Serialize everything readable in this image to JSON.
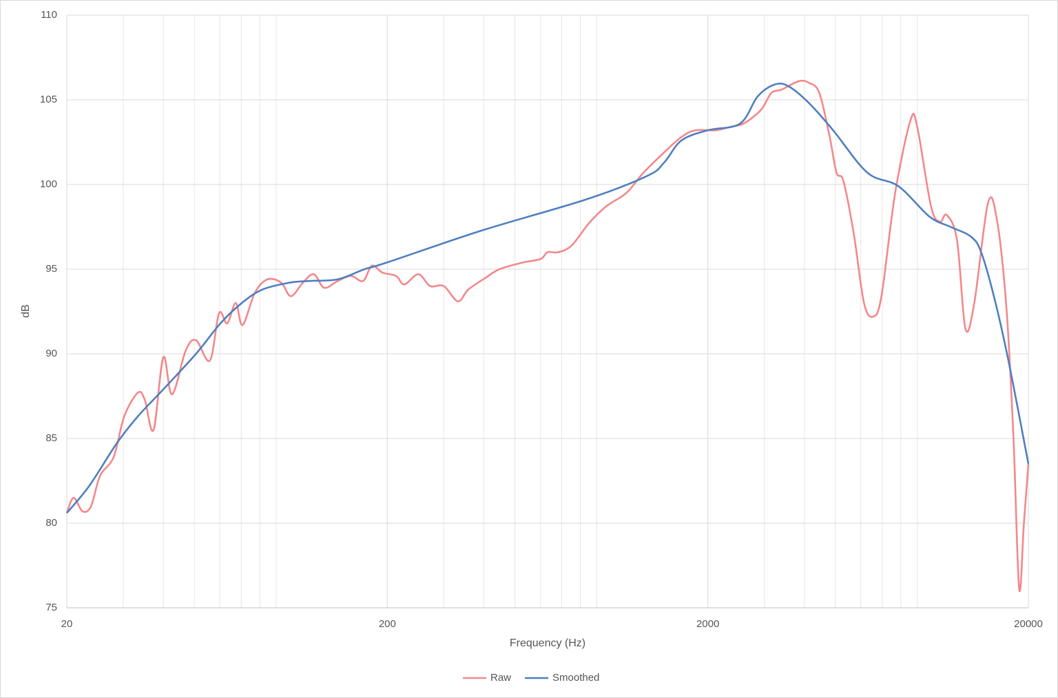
{
  "chart_data": {
    "type": "line",
    "x_label": "Frequency (Hz)",
    "y_label": "dB",
    "xlog": true,
    "grid": true,
    "legend": "bottom",
    "xlim": [
      20,
      20000
    ],
    "xticks": [
      20,
      200,
      2000,
      20000
    ],
    "xminorticks": [
      30,
      40,
      50,
      60,
      70,
      80,
      90,
      300,
      400,
      500,
      600,
      700,
      800,
      900,
      3000,
      4000,
      5000,
      6000,
      7000,
      8000,
      9000
    ],
    "ylim": [
      75,
      110
    ],
    "yticks": [
      75,
      80,
      85,
      90,
      95,
      100,
      105,
      110
    ],
    "series": [
      {
        "name": "Raw",
        "color": "#f4878a",
        "x": [
          20,
          21,
          22.4,
          23.8,
          25.4,
          28,
          30.2,
          33.3,
          35,
          37.3,
          40,
          42.6,
          47,
          50.6,
          55.9,
          59.7,
          63.3,
          67.3,
          70.7,
          77.2,
          84.5,
          93.3,
          100,
          109,
          118,
          127,
          140,
          154,
          168,
          179,
          193,
          213,
          226,
          250,
          272,
          300,
          332,
          358,
          406,
          448,
          532,
          602,
          632,
          682,
          752,
          850,
          962,
          1114,
          1260,
          1462,
          1654,
          1830,
          2120,
          2344,
          2586,
          2928,
          3154,
          3396,
          3842,
          4140,
          4456,
          4800,
          5040,
          5296,
          5704,
          6140,
          6560,
          6960,
          7680,
          8580,
          9000,
          9940,
          10600,
          11120,
          11980,
          12720,
          13560,
          14960,
          15960,
          17100,
          17980,
          18720,
          19370,
          20000
        ],
        "values": [
          80.6,
          81.5,
          80.7,
          81.0,
          82.8,
          83.9,
          86.3,
          87.7,
          87.3,
          85.5,
          89.8,
          87.6,
          90.2,
          90.8,
          89.6,
          92.4,
          91.8,
          93.0,
          91.7,
          93.6,
          94.4,
          94.2,
          93.4,
          94.2,
          94.7,
          93.9,
          94.3,
          94.6,
          94.3,
          95.2,
          94.8,
          94.6,
          94.1,
          94.7,
          94.0,
          94.0,
          93.1,
          93.8,
          94.5,
          95.0,
          95.4,
          95.6,
          96.0,
          96.0,
          96.4,
          97.7,
          98.7,
          99.5,
          100.7,
          101.9,
          102.8,
          103.2,
          103.2,
          103.4,
          103.6,
          104.4,
          105.4,
          105.6,
          106.1,
          106.0,
          105.4,
          102.8,
          100.7,
          100.2,
          97.1,
          93.0,
          92.2,
          93.4,
          99.5,
          103.8,
          103.4,
          98.7,
          97.8,
          98.2,
          96.7,
          91.5,
          93.0,
          98.9,
          97.9,
          92.6,
          84.9,
          76.1,
          80.0,
          83.5
        ]
      },
      {
        "name": "Smoothed",
        "color": "#4e7fc0",
        "x": [
          20,
          23.5,
          28.6,
          33.3,
          40,
          50.6,
          60.3,
          70.3,
          81.6,
          99,
          114,
          140,
          170,
          200,
          397,
          829,
          1292,
          1462,
          1654,
          2000,
          2522,
          2860,
          3230,
          3570,
          4140,
          4920,
          6290,
          7860,
          9830,
          11420,
          13280,
          14310,
          15800,
          17460,
          20000
        ],
        "values": [
          80.6,
          82.2,
          84.7,
          86.3,
          87.9,
          90.0,
          91.8,
          93.0,
          93.8,
          94.2,
          94.3,
          94.4,
          95.0,
          95.4,
          97.3,
          99.1,
          100.5,
          101.3,
          102.6,
          103.2,
          103.6,
          105.2,
          105.9,
          105.8,
          104.8,
          103.2,
          100.7,
          99.9,
          98.1,
          97.5,
          96.9,
          95.9,
          93.0,
          89.3,
          83.5
        ]
      }
    ]
  }
}
